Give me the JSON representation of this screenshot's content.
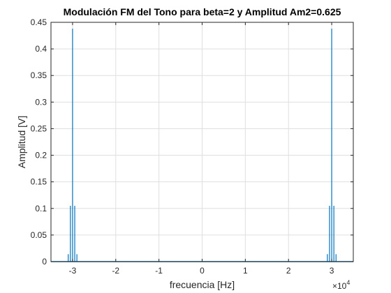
{
  "chart_data": {
    "type": "line",
    "title": "Modulación FM del Tono para beta=2 y Amplitud Am2=0.625",
    "xlabel": "frecuencia [Hz]",
    "ylabel": "Amplitud [V]",
    "x_exponent_base": "×10",
    "x_exponent_power": "4",
    "xlim": [
      -35000,
      35000
    ],
    "ylim": [
      0,
      0.45
    ],
    "xticks": [
      -30000,
      -20000,
      -10000,
      0,
      10000,
      20000,
      30000
    ],
    "xtick_labels": [
      "-3",
      "-2",
      "-1",
      "0",
      "1",
      "2",
      "3"
    ],
    "yticks": [
      0,
      0.05,
      0.1,
      0.15,
      0.2,
      0.25,
      0.3,
      0.35,
      0.4,
      0.45
    ],
    "ytick_labels": [
      "0",
      "0.05",
      "0.1",
      "0.15",
      "0.2",
      "0.25",
      "0.3",
      "0.35",
      "0.4",
      "0.45"
    ],
    "grid": true,
    "series": [
      {
        "color": "#0072bd",
        "points": [
          {
            "x": -31000,
            "y": 0.014
          },
          {
            "x": -30500,
            "y": 0.105
          },
          {
            "x": -30000,
            "y": 0.438
          },
          {
            "x": -29500,
            "y": 0.105
          },
          {
            "x": -29000,
            "y": 0.014
          },
          {
            "x": 29000,
            "y": 0.014
          },
          {
            "x": 29500,
            "y": 0.105
          },
          {
            "x": 30000,
            "y": 0.438
          },
          {
            "x": 30500,
            "y": 0.105
          },
          {
            "x": 31000,
            "y": 0.014
          }
        ]
      }
    ]
  },
  "colors": {
    "axes": "#262626",
    "grid": "#dfdfdf",
    "line": "#0072bd",
    "background": "#ffffff"
  }
}
